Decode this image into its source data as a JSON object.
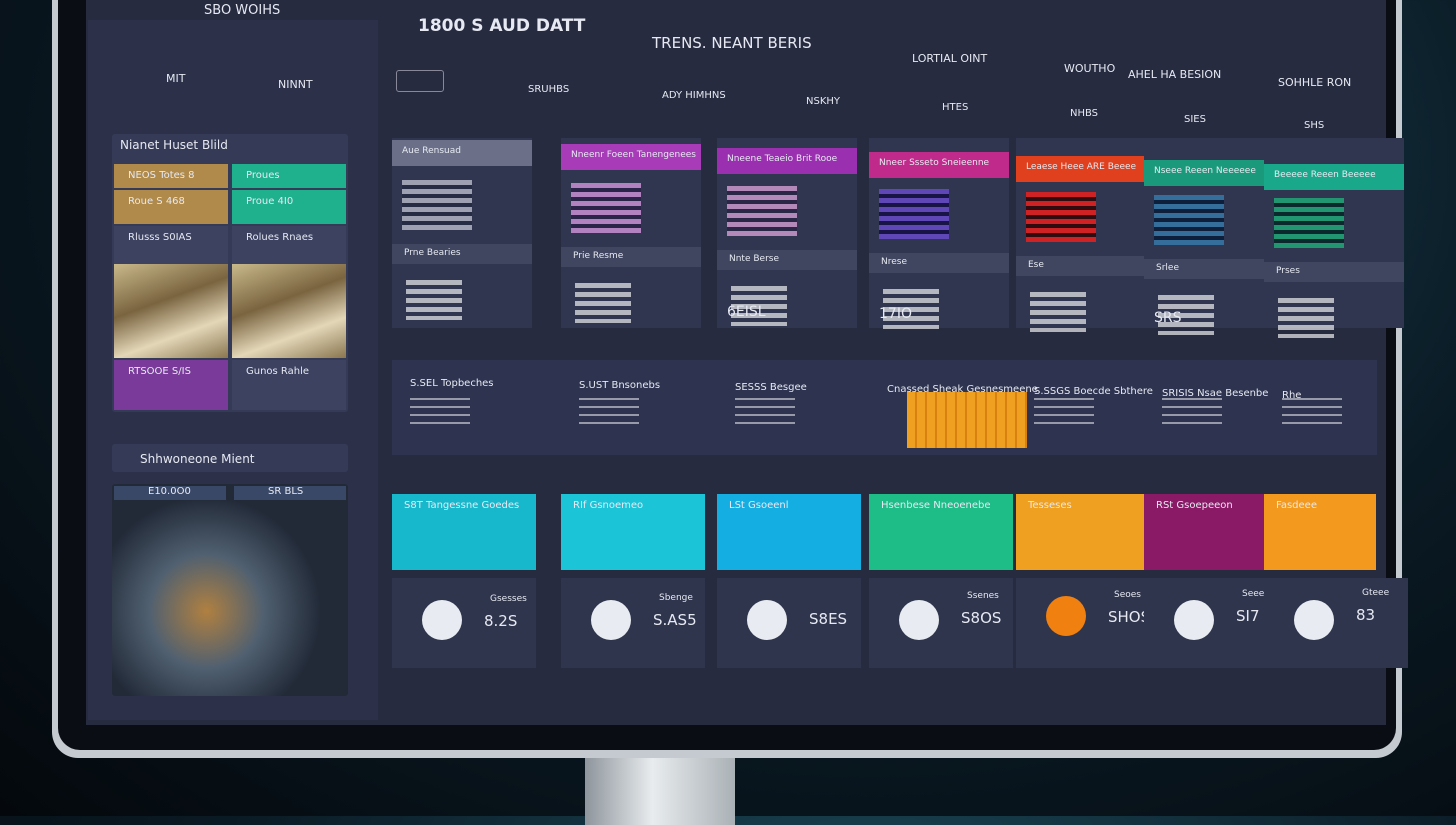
{
  "header": {
    "menu": "SBO WOIHS",
    "title": "1800 S AUD DATT",
    "subtitle": "TRENS. NEANT BERIS",
    "links": [
      "LORTIAL OINT",
      "WOUTHO",
      "AHEL HA BESION",
      "SOHHLE RON"
    ]
  },
  "sidebar": {
    "tabs": [
      "MIT",
      "NINNT"
    ],
    "panel_title": "Nianet Huset Blild",
    "tiles": [
      [
        "NEOS Totes 8",
        "Proues"
      ],
      [
        "Roue S 468",
        "Proue 4I0"
      ],
      [
        "Rlusss S0IAS",
        "Rolues Rnaes"
      ],
      [
        "",
        ""
      ],
      [
        "RTSOOE S/IS",
        "Gunos Rahle"
      ]
    ],
    "map_title": "Shhwoneone Mient",
    "map_tabs": [
      "E10.0O0",
      "SR BLS"
    ]
  },
  "main": {
    "toolbar": [
      "SRUHBS",
      "ADY HIMHNS",
      "NSKHY",
      "HTES",
      "NHBS",
      "SIES",
      "SHS"
    ],
    "row1": [
      "Aue Rensuad",
      "Nneenr Foeen Tanengenees",
      "Nneene Teaeio Brit Rooe",
      "Nneer Ssseto Sneieenne",
      "Leaese Heee ARE Beeee",
      "Nseee Reeen Neeeeee",
      "Beeeee Reeen Beeeee"
    ],
    "row2": [
      [
        "Prne Bearies",
        ""
      ],
      [
        "Prie Resme",
        ""
      ],
      [
        "Nnte Berse",
        "6EISL"
      ],
      [
        "Nrese",
        "17IO"
      ],
      [
        "Ese",
        ""
      ],
      [
        "Srlee",
        "SRS"
      ],
      [
        "Prses",
        ""
      ]
    ],
    "stats": [
      "S.SEL Topbeches",
      "S.UST Bnsonebs",
      "SESSS Besgee",
      "Cnassed Sheak Gesnesmeene",
      "S.SSGS Boecde Sbthere",
      "SRISIS Nsae Besenbe",
      "Rhe"
    ],
    "cards": [
      "S8T Tangessne Goedes",
      "RIf Gsnoemeo",
      "LSt Gsoeenl",
      "Hsenbese Nneoenebe",
      "Tesseses",
      "RSt Gsoepeeon",
      "Fasdeee"
    ],
    "kpis": [
      [
        "Gsesses",
        "8.2S"
      ],
      [
        "Sbenge",
        "S.AS5"
      ],
      [
        "",
        "S8ES"
      ],
      [
        "Ssenes",
        "S8OS"
      ],
      [
        "Seoes",
        "SHOS"
      ],
      [
        "Seees",
        "SI7"
      ],
      [
        "Gteee",
        "83"
      ]
    ]
  }
}
